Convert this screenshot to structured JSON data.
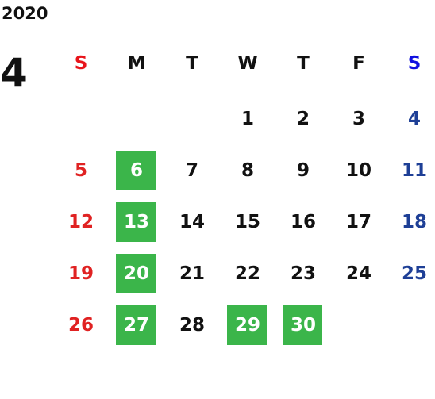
{
  "year": "2020",
  "month": "4",
  "weekday_color": "#111111",
  "sunday_color": "#e02222",
  "saturday_color": "#1e3f96",
  "highlight_color": "#3bb54a",
  "highlight_text_color": "#ffffff",
  "weekdays": [
    {
      "label": "S",
      "color": "#e8141b"
    },
    {
      "label": "M"
    },
    {
      "label": "T"
    },
    {
      "label": "W"
    },
    {
      "label": "T"
    },
    {
      "label": "F"
    },
    {
      "label": "S",
      "color": "#1010e0"
    }
  ],
  "weeks": [
    [
      null,
      null,
      null,
      {
        "day": 1
      },
      {
        "day": 2
      },
      {
        "day": 3
      },
      {
        "day": 4
      }
    ],
    [
      {
        "day": 5
      },
      {
        "day": 6,
        "highlight": true
      },
      {
        "day": 7
      },
      {
        "day": 8
      },
      {
        "day": 9
      },
      {
        "day": 10
      },
      {
        "day": 11
      }
    ],
    [
      {
        "day": 12
      },
      {
        "day": 13,
        "highlight": true
      },
      {
        "day": 14
      },
      {
        "day": 15
      },
      {
        "day": 16
      },
      {
        "day": 17
      },
      {
        "day": 18
      }
    ],
    [
      {
        "day": 19
      },
      {
        "day": 20,
        "highlight": true
      },
      {
        "day": 21
      },
      {
        "day": 22
      },
      {
        "day": 23
      },
      {
        "day": 24
      },
      {
        "day": 25
      }
    ],
    [
      {
        "day": 26
      },
      {
        "day": 27,
        "highlight": true
      },
      {
        "day": 28
      },
      {
        "day": 29,
        "highlight": true
      },
      {
        "day": 30,
        "highlight": true
      },
      null,
      null
    ]
  ]
}
